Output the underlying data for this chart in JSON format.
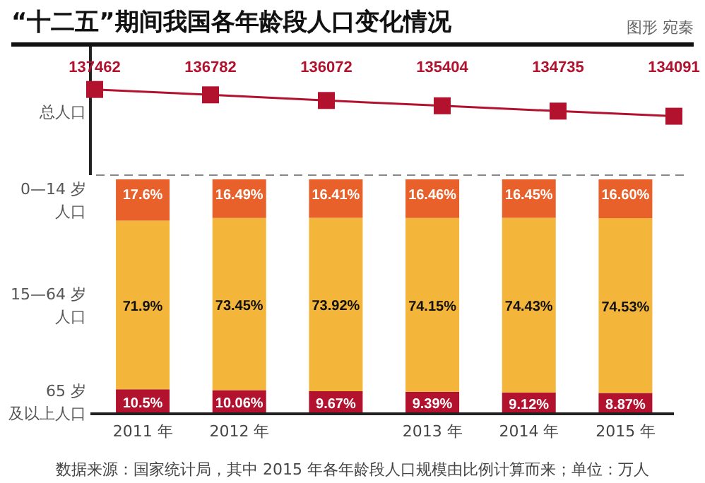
{
  "chart_data": [
    {
      "type": "line",
      "title": "“十二五”期间我国各年龄段人口变化情况",
      "annotations": [
        "图形 宛秦"
      ],
      "categories": [
        null,
        null,
        null,
        null,
        null,
        null
      ],
      "tick_labels": false,
      "marker": "square",
      "data_labels": true,
      "series": [
        {
          "name": "总人口",
          "color": "#b3122e",
          "values": [
            137462,
            136782,
            136072,
            135404,
            134735,
            134091
          ]
        }
      ]
    },
    {
      "type": "bar",
      "stacked": true,
      "categories": [
        "2011 年",
        "2012 年",
        null,
        "2013 年",
        "2014 年",
        "2015 年"
      ],
      "tick_labels": "x",
      "annotations": [
        "数据来源：国家统计局，其中 2015 年各年龄段人口规模由比例计算而来；单位：万人"
      ],
      "series": [
        {
          "name": "65 岁及以上人口",
          "color": "#b3122e",
          "values": [
            10.5,
            10.06,
            9.67,
            9.39,
            9.12,
            8.87
          ],
          "value_labels": [
            "10.5%",
            "10.06%",
            "9.67%",
            "9.39%",
            "9.12%",
            "8.87%"
          ]
        },
        {
          "name": "15—64 岁人口",
          "color": "#f3b63a",
          "values": [
            71.9,
            73.45,
            73.92,
            74.15,
            74.43,
            74.53
          ],
          "value_labels": [
            "71.9%",
            "73.45%",
            "73.92%",
            "74.15%",
            "74.43%",
            "74.53%"
          ]
        },
        {
          "name": "0—14 岁人口",
          "color": "#e8612b",
          "values": [
            17.6,
            16.49,
            16.41,
            16.46,
            16.45,
            16.6
          ],
          "value_labels": [
            "17.6%",
            "16.49%",
            "16.41%",
            "16.46%",
            "16.45%",
            "16.60%"
          ]
        }
      ]
    }
  ]
}
